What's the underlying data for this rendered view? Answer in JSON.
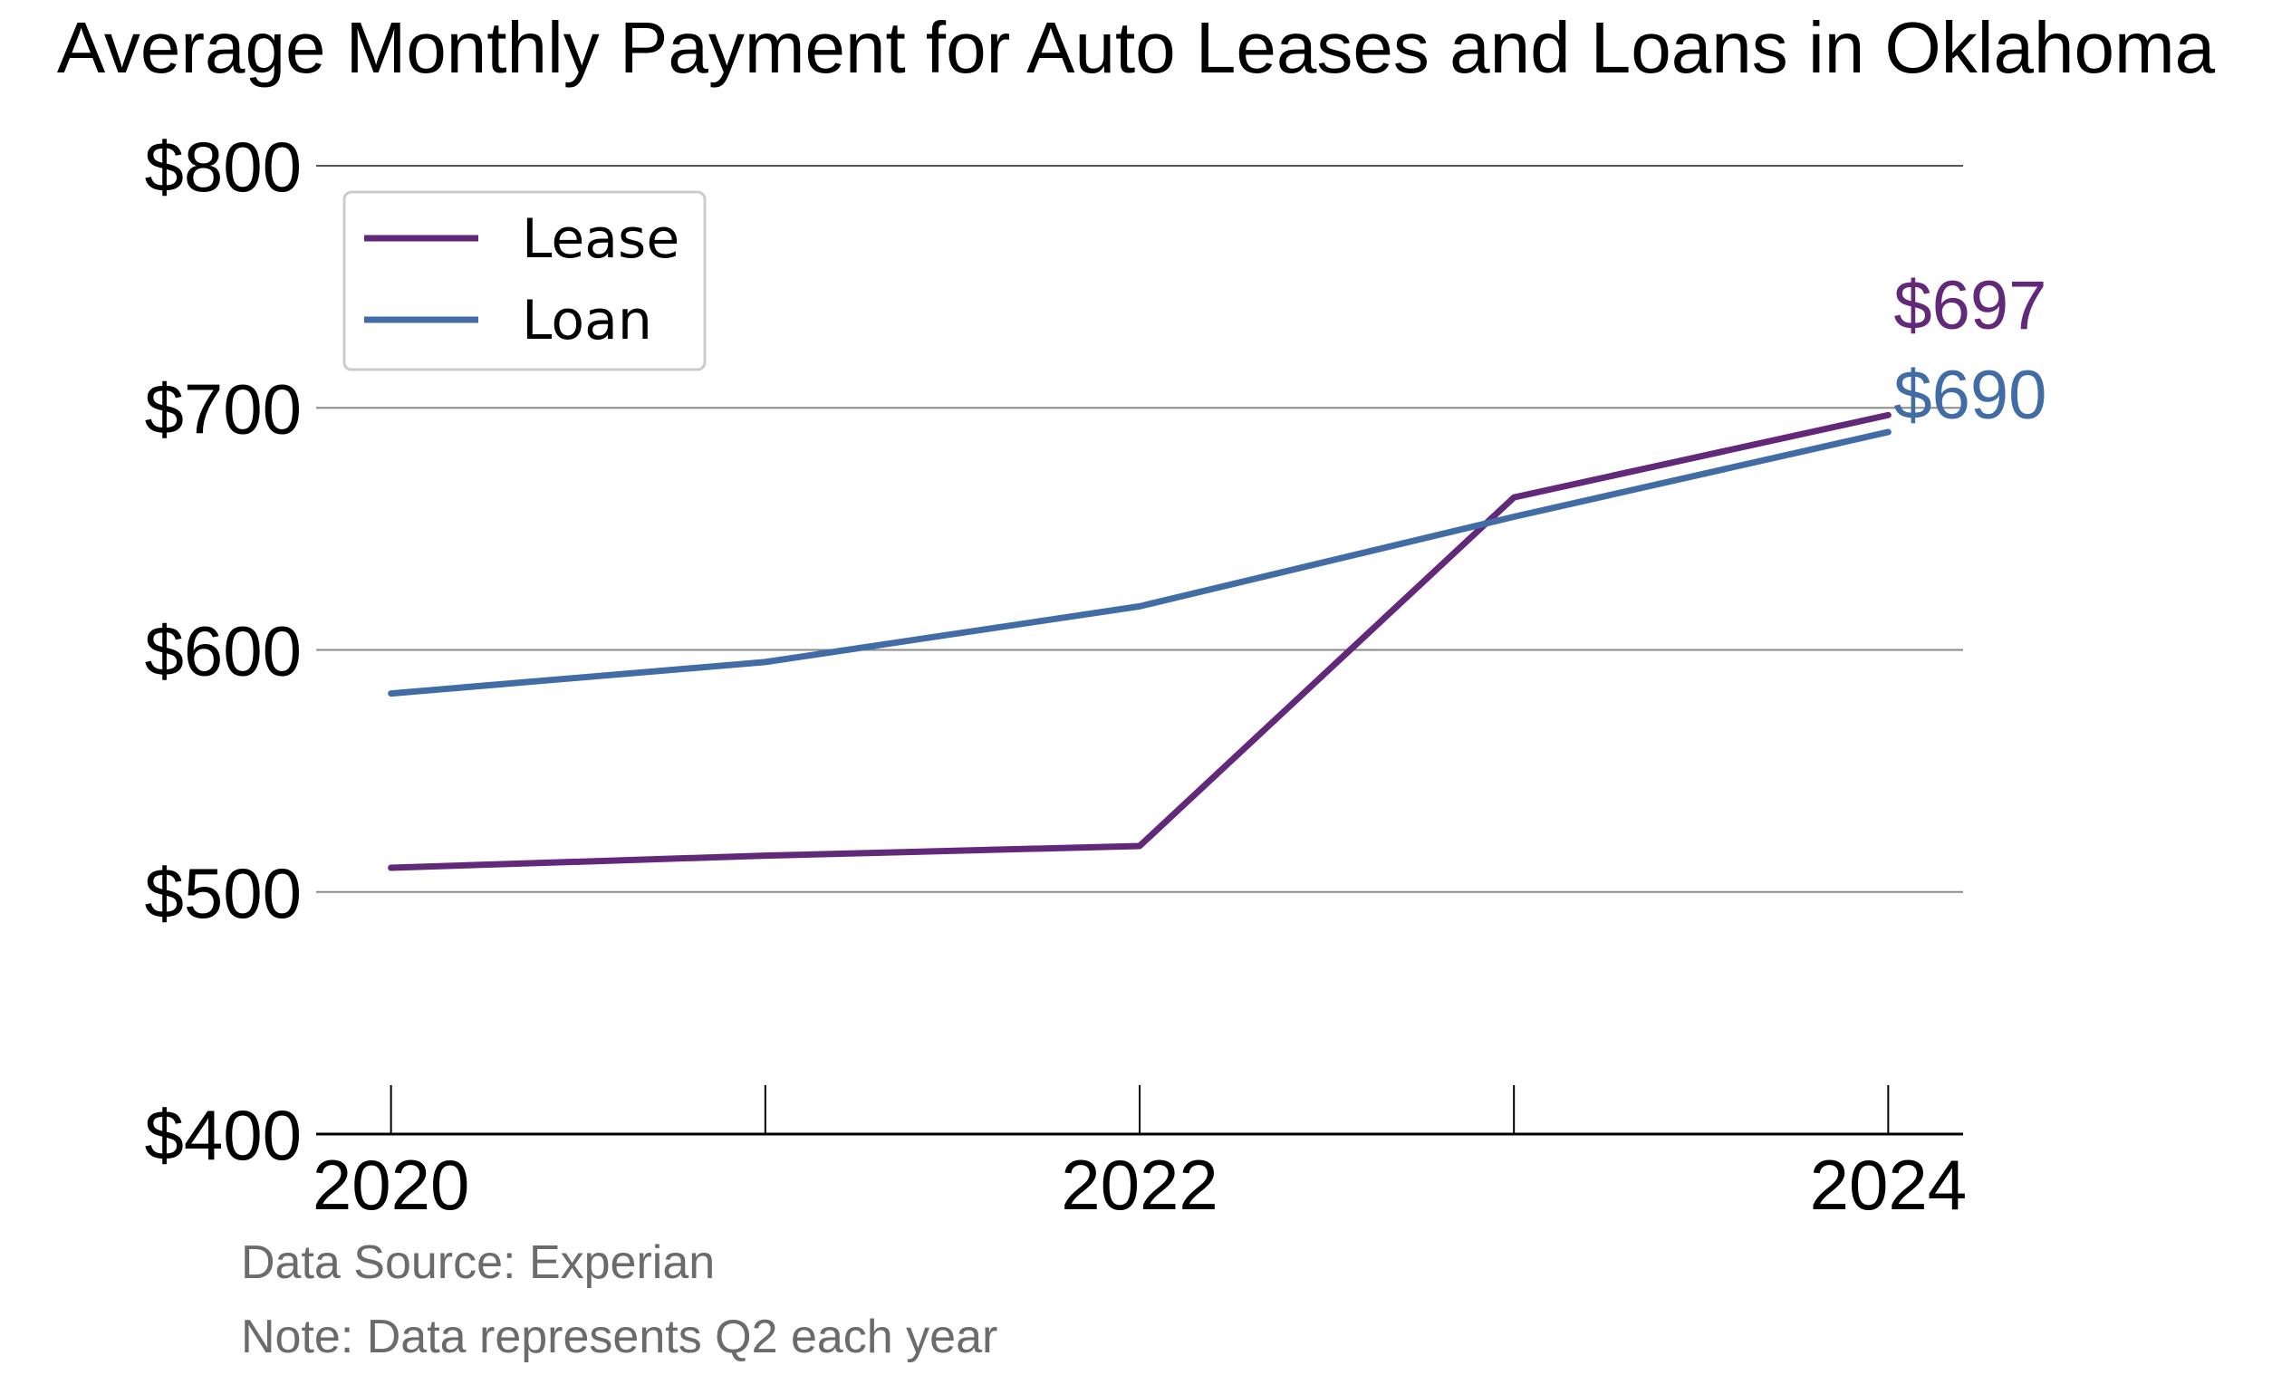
{
  "chart_data": {
    "type": "line",
    "title": "Average Monthly Payment for Auto Leases and Loans in Oklahoma",
    "x": [
      2020,
      2021,
      2022,
      2023,
      2024
    ],
    "x_tick_labels": [
      "2020",
      "2022",
      "2024"
    ],
    "x_tick_values": [
      2020,
      2022,
      2024
    ],
    "x_minor_ticks": [
      2021,
      2023
    ],
    "xlim": [
      2019.8,
      2024.2
    ],
    "ylim": [
      400,
      800
    ],
    "y_tick_values": [
      400,
      500,
      600,
      700,
      800
    ],
    "y_tick_labels": [
      "$400",
      "$500",
      "$600",
      "$700",
      "$800"
    ],
    "grid": "horizontal",
    "legend": "top-left",
    "series": [
      {
        "name": "Lease",
        "color": "#62287a",
        "values": [
          510,
          515,
          519,
          663,
          697
        ],
        "end_label": "$697"
      },
      {
        "name": "Loan",
        "color": "#416ca6",
        "values": [
          582,
          595,
          618,
          655,
          690
        ],
        "end_label": "$690"
      }
    ]
  },
  "footnotes": {
    "source": "Data Source: Experian",
    "note": "Note: Data represents Q2 each year"
  }
}
